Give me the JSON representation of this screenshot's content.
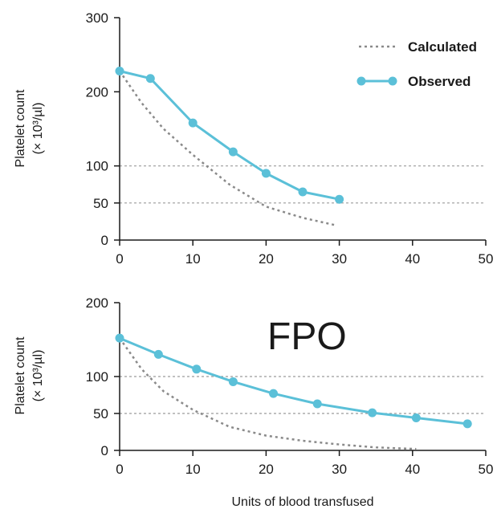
{
  "colors": {
    "observed": "#5bc0d8",
    "calculated": "#8a8a8a",
    "axis": "#1a1a1a",
    "grid": "#9a9a9a"
  },
  "watermark": "FPO",
  "shared_xlabel": "Units of blood transfused",
  "legend": {
    "calculated": "Calculated",
    "observed": "Observed",
    "placement": "top-right (top panel)"
  },
  "chart_data": [
    {
      "type": "line",
      "ylabel_line1": "Platelet count",
      "ylabel_line2": "(× 10³/µl)",
      "xlabel": "",
      "xlim": [
        0,
        50
      ],
      "ylim": [
        0,
        300
      ],
      "xticks": [
        0,
        10,
        20,
        30,
        40,
        50
      ],
      "yticks": [
        0,
        50,
        100,
        200,
        300
      ],
      "grid_lines_y": [
        50,
        100
      ],
      "series": [
        {
          "name": "Observed",
          "style": "solid-with-markers",
          "x": [
            0,
            4.2,
            10,
            15.5,
            20,
            25,
            30
          ],
          "y": [
            228,
            218,
            158,
            119,
            90,
            65,
            55
          ]
        },
        {
          "name": "Calculated",
          "style": "dashed",
          "x": [
            0,
            3,
            6,
            10,
            15,
            20,
            25,
            29.5
          ],
          "y": [
            228,
            185,
            150,
            115,
            75,
            45,
            30,
            20
          ]
        }
      ]
    },
    {
      "type": "line",
      "ylabel_line1": "Platelet count",
      "ylabel_line2": "(× 10³/µl)",
      "xlabel": "Units of blood transfused",
      "xlim": [
        0,
        50
      ],
      "ylim": [
        0,
        200
      ],
      "xticks": [
        0,
        10,
        20,
        30,
        40,
        50
      ],
      "yticks": [
        0,
        50,
        100,
        200
      ],
      "grid_lines_y": [
        50,
        100
      ],
      "series": [
        {
          "name": "Observed",
          "style": "solid-with-markers",
          "x": [
            0,
            5.3,
            10.5,
            15.5,
            21,
            27,
            34.5,
            40.5,
            47.5
          ],
          "y": [
            152,
            130,
            110,
            93,
            77,
            63,
            51,
            44,
            36
          ]
        },
        {
          "name": "Calculated",
          "style": "dashed",
          "x": [
            0,
            3,
            6,
            10,
            15,
            20,
            25,
            30,
            35,
            40.5
          ],
          "y": [
            152,
            110,
            80,
            55,
            32,
            20,
            13,
            8,
            4,
            2
          ]
        }
      ]
    }
  ]
}
